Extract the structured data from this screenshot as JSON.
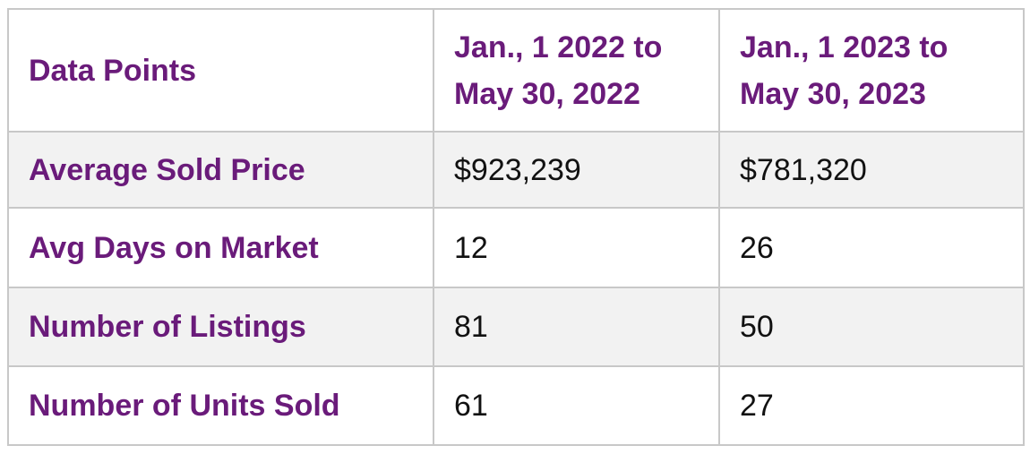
{
  "table": {
    "headers": [
      "Data Points",
      [
        "Jan., 1 2022 to",
        "May 30, 2022"
      ],
      [
        "Jan., 1 2023 to",
        "May 30, 2023"
      ]
    ],
    "rows": [
      {
        "label": "Average Sold Price",
        "values": [
          "$923,239",
          "$781,320"
        ]
      },
      {
        "label": "Avg Days on Market",
        "values": [
          "12",
          "26"
        ]
      },
      {
        "label": "Number of Listings",
        "values": [
          "81",
          "50"
        ]
      },
      {
        "label": "Number of Units Sold",
        "values": [
          "61",
          "27"
        ]
      }
    ]
  },
  "colors": {
    "accent": "#6a1b7a",
    "row_shade": "#f2f2f2",
    "border": "#c8c8c8"
  }
}
